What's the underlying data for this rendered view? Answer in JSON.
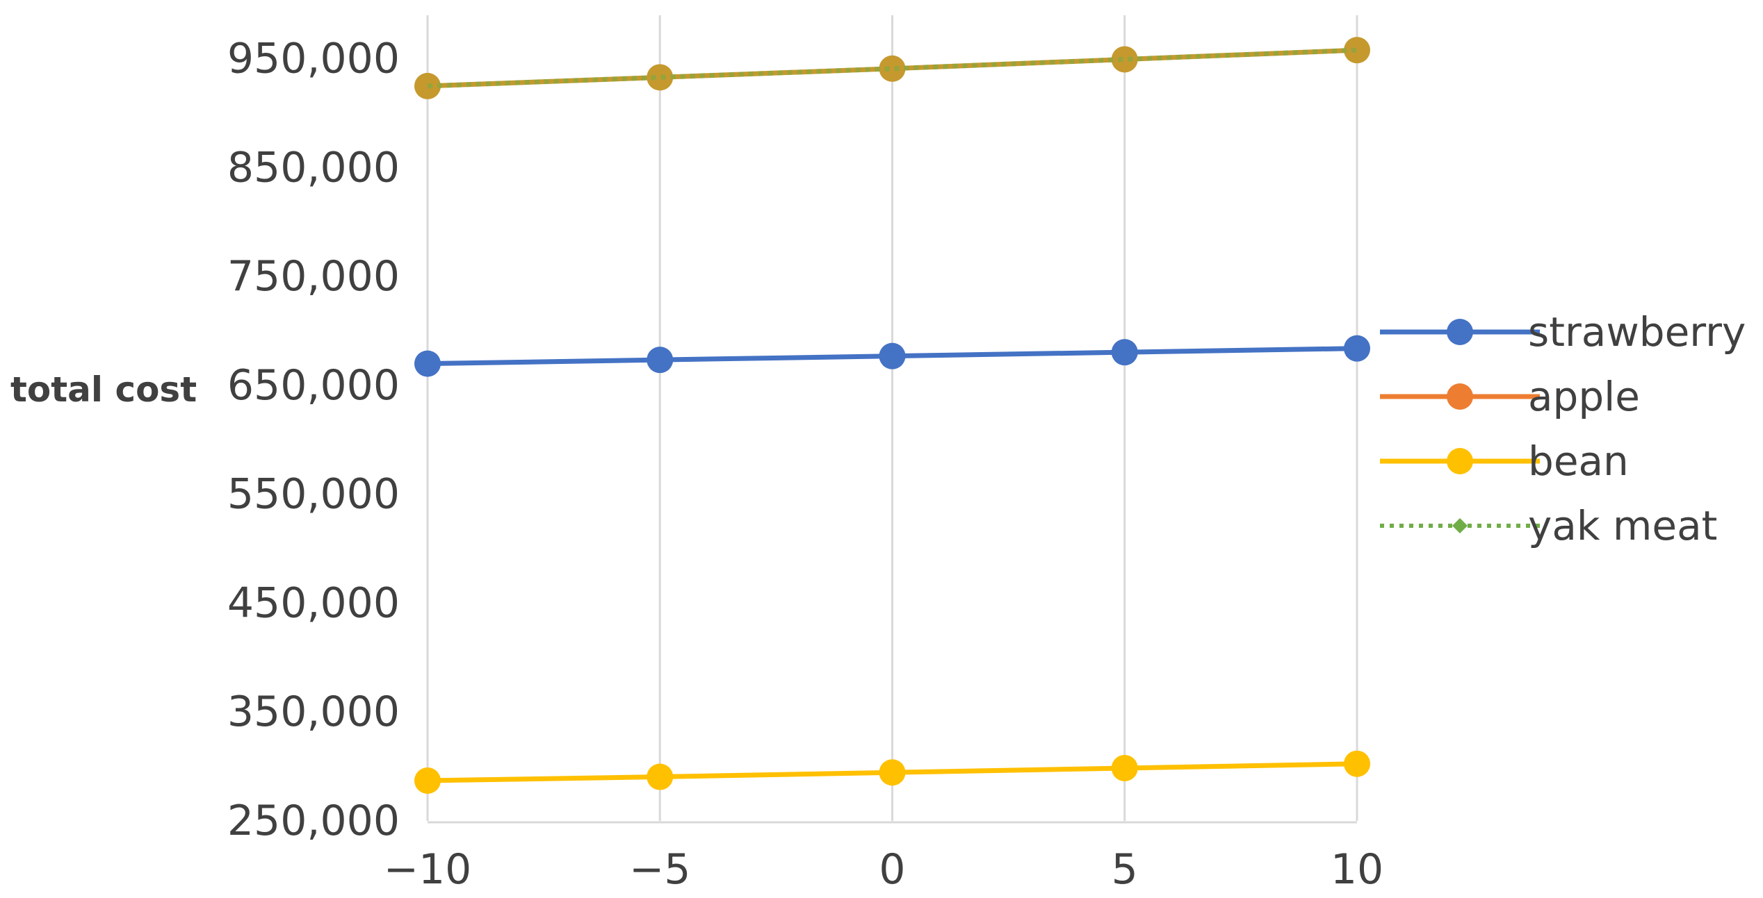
{
  "chart_data": {
    "type": "line",
    "x": [
      -10,
      -5,
      0,
      5,
      10
    ],
    "x_tick_labels": [
      "−10",
      "−5",
      "0",
      "5",
      "10"
    ],
    "y_tick_values": [
      250000,
      350000,
      450000,
      550000,
      650000,
      750000,
      850000,
      950000
    ],
    "y_tick_labels": [
      "250,000",
      "350,000",
      "450,000",
      "550,000",
      "650,000",
      "750,000",
      "850,000",
      "950,000"
    ],
    "ylim": [
      250000,
      990000
    ],
    "xlim": [
      -10,
      10
    ],
    "ylabel": "total cost",
    "xlabel": "",
    "title": "",
    "grid": "vertical",
    "legend_position": "right",
    "series": [
      {
        "name": "strawberry",
        "color": "#4472C4",
        "style": "solid",
        "marker": "circle",
        "values": [
          670000,
          673500,
          677000,
          680500,
          684000
        ]
      },
      {
        "name": "apple",
        "color": "#ED7D31",
        "style": "solid",
        "marker": "circle",
        "values": [
          925000,
          933000,
          941000,
          949500,
          958000
        ]
      },
      {
        "name": "bean",
        "color": "#FFC000",
        "style": "solid",
        "marker": "circle",
        "values": [
          287000,
          290500,
          294500,
          298500,
          302500
        ]
      },
      {
        "name": "yak meat",
        "color": "#70AD47",
        "style": "dotted",
        "marker": "diamond",
        "values": [
          925000,
          933000,
          941000,
          949500,
          958000
        ]
      }
    ],
    "overlap_color": "#C5992E"
  }
}
